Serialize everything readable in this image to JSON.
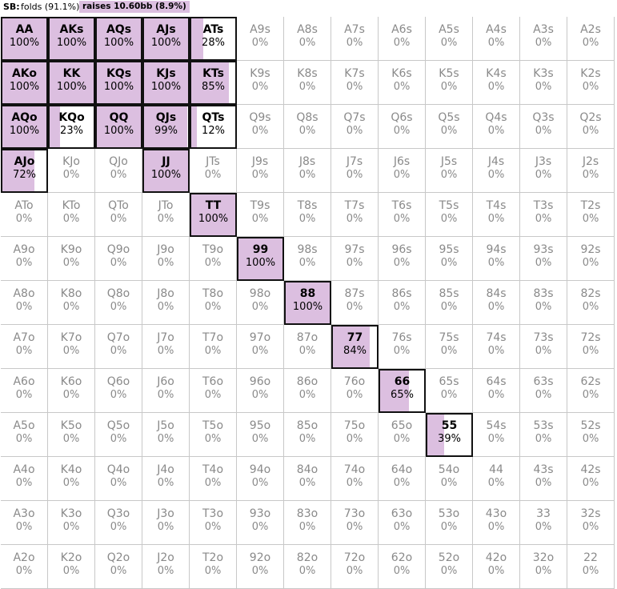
{
  "header": {
    "position_label": "SB:",
    "fold_text": "folds (91.1%)",
    "raise_text": "raises 10.60bb (8.9%)"
  },
  "colors": {
    "raise_fill": "#dcbfe0",
    "active_border": "#111111",
    "inactive_text": "#8a8a8a",
    "grid_line": "#c8c8c8"
  },
  "matrix": [
    [
      {
        "hand": "AA",
        "pct": "100%",
        "raise": 100
      },
      {
        "hand": "AKs",
        "pct": "100%",
        "raise": 100
      },
      {
        "hand": "AQs",
        "pct": "100%",
        "raise": 100
      },
      {
        "hand": "AJs",
        "pct": "100%",
        "raise": 100
      },
      {
        "hand": "ATs",
        "pct": "28%",
        "raise": 28
      },
      {
        "hand": "A9s",
        "pct": "0%",
        "raise": 0
      },
      {
        "hand": "A8s",
        "pct": "0%",
        "raise": 0
      },
      {
        "hand": "A7s",
        "pct": "0%",
        "raise": 0
      },
      {
        "hand": "A6s",
        "pct": "0%",
        "raise": 0
      },
      {
        "hand": "A5s",
        "pct": "0%",
        "raise": 0
      },
      {
        "hand": "A4s",
        "pct": "0%",
        "raise": 0
      },
      {
        "hand": "A3s",
        "pct": "0%",
        "raise": 0
      },
      {
        "hand": "A2s",
        "pct": "0%",
        "raise": 0
      }
    ],
    [
      {
        "hand": "AKo",
        "pct": "100%",
        "raise": 100
      },
      {
        "hand": "KK",
        "pct": "100%",
        "raise": 100
      },
      {
        "hand": "KQs",
        "pct": "100%",
        "raise": 100
      },
      {
        "hand": "KJs",
        "pct": "100%",
        "raise": 100
      },
      {
        "hand": "KTs",
        "pct": "85%",
        "raise": 85
      },
      {
        "hand": "K9s",
        "pct": "0%",
        "raise": 0
      },
      {
        "hand": "K8s",
        "pct": "0%",
        "raise": 0
      },
      {
        "hand": "K7s",
        "pct": "0%",
        "raise": 0
      },
      {
        "hand": "K6s",
        "pct": "0%",
        "raise": 0
      },
      {
        "hand": "K5s",
        "pct": "0%",
        "raise": 0
      },
      {
        "hand": "K4s",
        "pct": "0%",
        "raise": 0
      },
      {
        "hand": "K3s",
        "pct": "0%",
        "raise": 0
      },
      {
        "hand": "K2s",
        "pct": "0%",
        "raise": 0
      }
    ],
    [
      {
        "hand": "AQo",
        "pct": "100%",
        "raise": 100
      },
      {
        "hand": "KQo",
        "pct": "23%",
        "raise": 23
      },
      {
        "hand": "QQ",
        "pct": "100%",
        "raise": 100
      },
      {
        "hand": "QJs",
        "pct": "99%",
        "raise": 99
      },
      {
        "hand": "QTs",
        "pct": "12%",
        "raise": 12
      },
      {
        "hand": "Q9s",
        "pct": "0%",
        "raise": 0
      },
      {
        "hand": "Q8s",
        "pct": "0%",
        "raise": 0
      },
      {
        "hand": "Q7s",
        "pct": "0%",
        "raise": 0
      },
      {
        "hand": "Q6s",
        "pct": "0%",
        "raise": 0
      },
      {
        "hand": "Q5s",
        "pct": "0%",
        "raise": 0
      },
      {
        "hand": "Q4s",
        "pct": "0%",
        "raise": 0
      },
      {
        "hand": "Q3s",
        "pct": "0%",
        "raise": 0
      },
      {
        "hand": "Q2s",
        "pct": "0%",
        "raise": 0
      }
    ],
    [
      {
        "hand": "AJo",
        "pct": "72%",
        "raise": 72
      },
      {
        "hand": "KJo",
        "pct": "0%",
        "raise": 0
      },
      {
        "hand": "QJo",
        "pct": "0%",
        "raise": 0
      },
      {
        "hand": "JJ",
        "pct": "100%",
        "raise": 100
      },
      {
        "hand": "JTs",
        "pct": "0%",
        "raise": 0
      },
      {
        "hand": "J9s",
        "pct": "0%",
        "raise": 0
      },
      {
        "hand": "J8s",
        "pct": "0%",
        "raise": 0
      },
      {
        "hand": "J7s",
        "pct": "0%",
        "raise": 0
      },
      {
        "hand": "J6s",
        "pct": "0%",
        "raise": 0
      },
      {
        "hand": "J5s",
        "pct": "0%",
        "raise": 0
      },
      {
        "hand": "J4s",
        "pct": "0%",
        "raise": 0
      },
      {
        "hand": "J3s",
        "pct": "0%",
        "raise": 0
      },
      {
        "hand": "J2s",
        "pct": "0%",
        "raise": 0
      }
    ],
    [
      {
        "hand": "ATo",
        "pct": "0%",
        "raise": 0
      },
      {
        "hand": "KTo",
        "pct": "0%",
        "raise": 0
      },
      {
        "hand": "QTo",
        "pct": "0%",
        "raise": 0
      },
      {
        "hand": "JTo",
        "pct": "0%",
        "raise": 0
      },
      {
        "hand": "TT",
        "pct": "100%",
        "raise": 100
      },
      {
        "hand": "T9s",
        "pct": "0%",
        "raise": 0
      },
      {
        "hand": "T8s",
        "pct": "0%",
        "raise": 0
      },
      {
        "hand": "T7s",
        "pct": "0%",
        "raise": 0
      },
      {
        "hand": "T6s",
        "pct": "0%",
        "raise": 0
      },
      {
        "hand": "T5s",
        "pct": "0%",
        "raise": 0
      },
      {
        "hand": "T4s",
        "pct": "0%",
        "raise": 0
      },
      {
        "hand": "T3s",
        "pct": "0%",
        "raise": 0
      },
      {
        "hand": "T2s",
        "pct": "0%",
        "raise": 0
      }
    ],
    [
      {
        "hand": "A9o",
        "pct": "0%",
        "raise": 0
      },
      {
        "hand": "K9o",
        "pct": "0%",
        "raise": 0
      },
      {
        "hand": "Q9o",
        "pct": "0%",
        "raise": 0
      },
      {
        "hand": "J9o",
        "pct": "0%",
        "raise": 0
      },
      {
        "hand": "T9o",
        "pct": "0%",
        "raise": 0
      },
      {
        "hand": "99",
        "pct": "100%",
        "raise": 100
      },
      {
        "hand": "98s",
        "pct": "0%",
        "raise": 0
      },
      {
        "hand": "97s",
        "pct": "0%",
        "raise": 0
      },
      {
        "hand": "96s",
        "pct": "0%",
        "raise": 0
      },
      {
        "hand": "95s",
        "pct": "0%",
        "raise": 0
      },
      {
        "hand": "94s",
        "pct": "0%",
        "raise": 0
      },
      {
        "hand": "93s",
        "pct": "0%",
        "raise": 0
      },
      {
        "hand": "92s",
        "pct": "0%",
        "raise": 0
      }
    ],
    [
      {
        "hand": "A8o",
        "pct": "0%",
        "raise": 0
      },
      {
        "hand": "K8o",
        "pct": "0%",
        "raise": 0
      },
      {
        "hand": "Q8o",
        "pct": "0%",
        "raise": 0
      },
      {
        "hand": "J8o",
        "pct": "0%",
        "raise": 0
      },
      {
        "hand": "T8o",
        "pct": "0%",
        "raise": 0
      },
      {
        "hand": "98o",
        "pct": "0%",
        "raise": 0
      },
      {
        "hand": "88",
        "pct": "100%",
        "raise": 100
      },
      {
        "hand": "87s",
        "pct": "0%",
        "raise": 0
      },
      {
        "hand": "86s",
        "pct": "0%",
        "raise": 0
      },
      {
        "hand": "85s",
        "pct": "0%",
        "raise": 0
      },
      {
        "hand": "84s",
        "pct": "0%",
        "raise": 0
      },
      {
        "hand": "83s",
        "pct": "0%",
        "raise": 0
      },
      {
        "hand": "82s",
        "pct": "0%",
        "raise": 0
      }
    ],
    [
      {
        "hand": "A7o",
        "pct": "0%",
        "raise": 0
      },
      {
        "hand": "K7o",
        "pct": "0%",
        "raise": 0
      },
      {
        "hand": "Q7o",
        "pct": "0%",
        "raise": 0
      },
      {
        "hand": "J7o",
        "pct": "0%",
        "raise": 0
      },
      {
        "hand": "T7o",
        "pct": "0%",
        "raise": 0
      },
      {
        "hand": "97o",
        "pct": "0%",
        "raise": 0
      },
      {
        "hand": "87o",
        "pct": "0%",
        "raise": 0
      },
      {
        "hand": "77",
        "pct": "84%",
        "raise": 84
      },
      {
        "hand": "76s",
        "pct": "0%",
        "raise": 0
      },
      {
        "hand": "75s",
        "pct": "0%",
        "raise": 0
      },
      {
        "hand": "74s",
        "pct": "0%",
        "raise": 0
      },
      {
        "hand": "73s",
        "pct": "0%",
        "raise": 0
      },
      {
        "hand": "72s",
        "pct": "0%",
        "raise": 0
      }
    ],
    [
      {
        "hand": "A6o",
        "pct": "0%",
        "raise": 0
      },
      {
        "hand": "K6o",
        "pct": "0%",
        "raise": 0
      },
      {
        "hand": "Q6o",
        "pct": "0%",
        "raise": 0
      },
      {
        "hand": "J6o",
        "pct": "0%",
        "raise": 0
      },
      {
        "hand": "T6o",
        "pct": "0%",
        "raise": 0
      },
      {
        "hand": "96o",
        "pct": "0%",
        "raise": 0
      },
      {
        "hand": "86o",
        "pct": "0%",
        "raise": 0
      },
      {
        "hand": "76o",
        "pct": "0%",
        "raise": 0
      },
      {
        "hand": "66",
        "pct": "65%",
        "raise": 65
      },
      {
        "hand": "65s",
        "pct": "0%",
        "raise": 0
      },
      {
        "hand": "64s",
        "pct": "0%",
        "raise": 0
      },
      {
        "hand": "63s",
        "pct": "0%",
        "raise": 0
      },
      {
        "hand": "62s",
        "pct": "0%",
        "raise": 0
      }
    ],
    [
      {
        "hand": "A5o",
        "pct": "0%",
        "raise": 0
      },
      {
        "hand": "K5o",
        "pct": "0%",
        "raise": 0
      },
      {
        "hand": "Q5o",
        "pct": "0%",
        "raise": 0
      },
      {
        "hand": "J5o",
        "pct": "0%",
        "raise": 0
      },
      {
        "hand": "T5o",
        "pct": "0%",
        "raise": 0
      },
      {
        "hand": "95o",
        "pct": "0%",
        "raise": 0
      },
      {
        "hand": "85o",
        "pct": "0%",
        "raise": 0
      },
      {
        "hand": "75o",
        "pct": "0%",
        "raise": 0
      },
      {
        "hand": "65o",
        "pct": "0%",
        "raise": 0
      },
      {
        "hand": "55",
        "pct": "39%",
        "raise": 39
      },
      {
        "hand": "54s",
        "pct": "0%",
        "raise": 0
      },
      {
        "hand": "53s",
        "pct": "0%",
        "raise": 0
      },
      {
        "hand": "52s",
        "pct": "0%",
        "raise": 0
      }
    ],
    [
      {
        "hand": "A4o",
        "pct": "0%",
        "raise": 0
      },
      {
        "hand": "K4o",
        "pct": "0%",
        "raise": 0
      },
      {
        "hand": "Q4o",
        "pct": "0%",
        "raise": 0
      },
      {
        "hand": "J4o",
        "pct": "0%",
        "raise": 0
      },
      {
        "hand": "T4o",
        "pct": "0%",
        "raise": 0
      },
      {
        "hand": "94o",
        "pct": "0%",
        "raise": 0
      },
      {
        "hand": "84o",
        "pct": "0%",
        "raise": 0
      },
      {
        "hand": "74o",
        "pct": "0%",
        "raise": 0
      },
      {
        "hand": "64o",
        "pct": "0%",
        "raise": 0
      },
      {
        "hand": "54o",
        "pct": "0%",
        "raise": 0
      },
      {
        "hand": "44",
        "pct": "0%",
        "raise": 0
      },
      {
        "hand": "43s",
        "pct": "0%",
        "raise": 0
      },
      {
        "hand": "42s",
        "pct": "0%",
        "raise": 0
      }
    ],
    [
      {
        "hand": "A3o",
        "pct": "0%",
        "raise": 0
      },
      {
        "hand": "K3o",
        "pct": "0%",
        "raise": 0
      },
      {
        "hand": "Q3o",
        "pct": "0%",
        "raise": 0
      },
      {
        "hand": "J3o",
        "pct": "0%",
        "raise": 0
      },
      {
        "hand": "T3o",
        "pct": "0%",
        "raise": 0
      },
      {
        "hand": "93o",
        "pct": "0%",
        "raise": 0
      },
      {
        "hand": "83o",
        "pct": "0%",
        "raise": 0
      },
      {
        "hand": "73o",
        "pct": "0%",
        "raise": 0
      },
      {
        "hand": "63o",
        "pct": "0%",
        "raise": 0
      },
      {
        "hand": "53o",
        "pct": "0%",
        "raise": 0
      },
      {
        "hand": "43o",
        "pct": "0%",
        "raise": 0
      },
      {
        "hand": "33",
        "pct": "0%",
        "raise": 0
      },
      {
        "hand": "32s",
        "pct": "0%",
        "raise": 0
      }
    ],
    [
      {
        "hand": "A2o",
        "pct": "0%",
        "raise": 0
      },
      {
        "hand": "K2o",
        "pct": "0%",
        "raise": 0
      },
      {
        "hand": "Q2o",
        "pct": "0%",
        "raise": 0
      },
      {
        "hand": "J2o",
        "pct": "0%",
        "raise": 0
      },
      {
        "hand": "T2o",
        "pct": "0%",
        "raise": 0
      },
      {
        "hand": "92o",
        "pct": "0%",
        "raise": 0
      },
      {
        "hand": "82o",
        "pct": "0%",
        "raise": 0
      },
      {
        "hand": "72o",
        "pct": "0%",
        "raise": 0
      },
      {
        "hand": "62o",
        "pct": "0%",
        "raise": 0
      },
      {
        "hand": "52o",
        "pct": "0%",
        "raise": 0
      },
      {
        "hand": "42o",
        "pct": "0%",
        "raise": 0
      },
      {
        "hand": "32o",
        "pct": "0%",
        "raise": 0
      },
      {
        "hand": "22",
        "pct": "0%",
        "raise": 0
      }
    ]
  ]
}
